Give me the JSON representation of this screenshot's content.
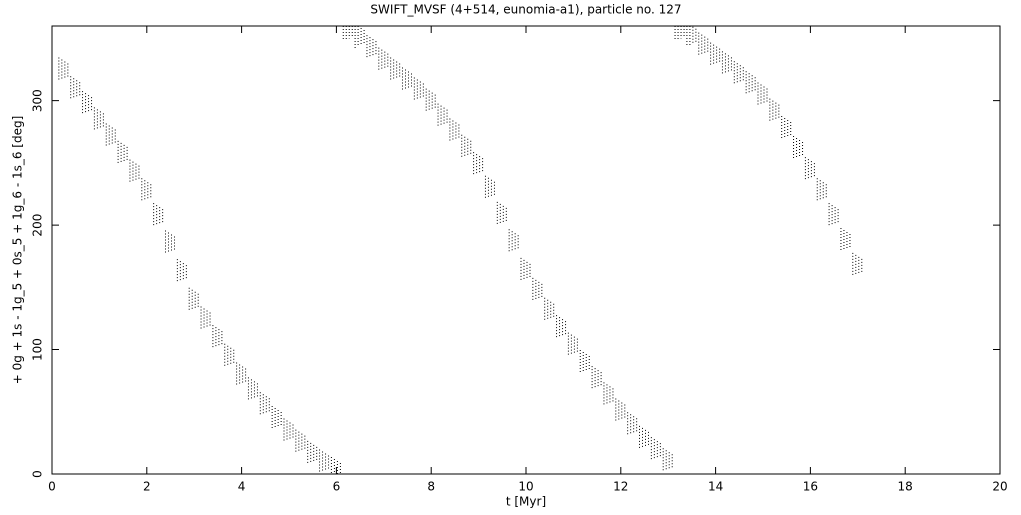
{
  "chart_data": {
    "type": "scatter",
    "title": "SWIFT_MVSF (4+514, eunomia-a1), particle no. 127",
    "x_label": "t [Myr]",
    "y_label": "+ 0g + 1s - 1g_5 + 0s_5 + 1g_6 - 1s_6 [deg]",
    "color": "#000000",
    "xlim": [
      0,
      20
    ],
    "ylim": [
      0,
      360
    ],
    "xticks": [
      0,
      2,
      4,
      6,
      8,
      10,
      12,
      14,
      16,
      18,
      20
    ],
    "yticks": [
      0,
      100,
      200,
      300
    ],
    "x": [
      0.25,
      0.5,
      0.75,
      1,
      1.25,
      1.5,
      1.75,
      2,
      2.25,
      2.5,
      2.75,
      3,
      3.25,
      3.5,
      3.75,
      4,
      4.25,
      4.5,
      4.75,
      5,
      5.25,
      5.5,
      5.75,
      6,
      6.25,
      6.5,
      6.75,
      7,
      7.25,
      7.5,
      7.75,
      8,
      8.25,
      8.5,
      8.75,
      9,
      9.25,
      9.5,
      9.75,
      10,
      10.25,
      10.5,
      10.75,
      11,
      11.25,
      11.5,
      11.75,
      12,
      12.25,
      12.5,
      12.75,
      13,
      13.25,
      13.5,
      13.75,
      14,
      14.25,
      14.5,
      14.75,
      15,
      15.25,
      15.5,
      15.75,
      16,
      16.25,
      16.5,
      16.75,
      17
    ],
    "values": [
      325,
      310,
      298,
      285,
      272,
      258,
      243,
      228,
      208,
      186,
      163,
      140,
      125,
      110,
      95,
      80,
      68,
      56,
      45,
      35,
      26,
      17,
      10,
      4,
      358,
      352,
      343,
      333,
      325,
      317,
      309,
      300,
      288,
      276,
      263,
      249,
      230,
      209,
      187,
      164,
      148,
      132,
      118,
      104,
      90,
      77,
      64,
      51,
      40,
      29,
      20,
      11,
      358,
      353,
      345,
      337,
      330,
      322,
      314,
      305,
      292,
      278,
      262,
      245,
      228,
      208,
      188,
      168
    ]
  }
}
